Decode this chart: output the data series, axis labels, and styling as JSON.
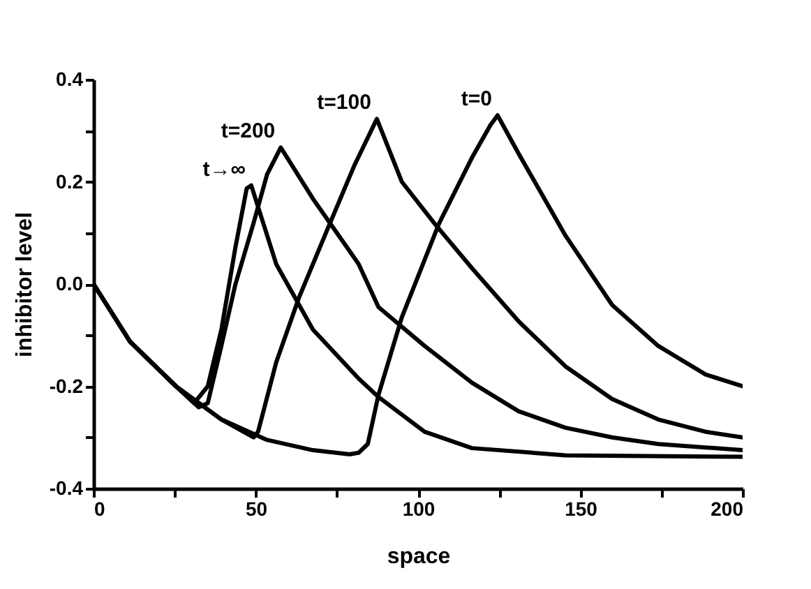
{
  "chart_data": {
    "type": "line",
    "xlabel": "space",
    "ylabel": "inhibitor level",
    "xlim": [
      0,
      200
    ],
    "ylim": [
      -0.4,
      0.4
    ],
    "xticks": [
      0,
      {
        "value": 25,
        "label": null
      },
      50,
      {
        "value": 75,
        "label": null
      },
      100,
      {
        "value": 125,
        "label": null
      },
      150,
      {
        "value": 175,
        "label": null
      },
      200
    ],
    "yticks": [
      -0.4,
      {
        "value": -0.3,
        "label": null
      },
      -0.2,
      {
        "value": -0.1,
        "label": null
      },
      {
        "value": 0,
        "label": "0.0"
      },
      {
        "value": 0.1,
        "label": null
      },
      0.2,
      {
        "value": 0.3,
        "label": null
      },
      0.4
    ],
    "grid": false,
    "legend": false,
    "line_style": "solid",
    "marker": "none",
    "series": [
      {
        "name": "t=0",
        "color": "#000000",
        "x": [
          0,
          11.3,
          25.4,
          39.4,
          53.5,
          67.6,
          78.9,
          81.7,
          84.5,
          87.8,
          95,
          106.5,
          116.6,
          122.3,
          124.5,
          131,
          145.4,
          159.8,
          174,
          188.6,
          200
        ],
        "values": [
          0,
          -0.113,
          -0.2,
          -0.265,
          -0.305,
          -0.325,
          -0.333,
          -0.33,
          -0.313,
          -0.217,
          -0.065,
          0.119,
          0.247,
          0.311,
          0.33,
          0.255,
          0.095,
          -0.041,
          -0.121,
          -0.177,
          -0.2
        ]
      },
      {
        "name": "t=100",
        "color": "#000000",
        "x": [
          0,
          11.3,
          25.4,
          39.4,
          49.3,
          50.7,
          56.3,
          63.4,
          71.8,
          80.3,
          87.3,
          95,
          105,
          116.6,
          131,
          145.4,
          159.8,
          174,
          188.6,
          200
        ],
        "values": [
          0,
          -0.113,
          -0.2,
          -0.265,
          -0.3,
          -0.289,
          -0.153,
          -0.025,
          0.103,
          0.231,
          0.323,
          0.2,
          0.119,
          0.031,
          -0.073,
          -0.161,
          -0.225,
          -0.265,
          -0.289,
          -0.3
        ]
      },
      {
        "name": "t=200",
        "color": "#000000",
        "x": [
          0,
          11.3,
          25.4,
          32.4,
          35.2,
          39.4,
          43.7,
          49.3,
          53.5,
          57.7,
          67.6,
          81.7,
          87.8,
          102,
          116.6,
          131,
          145.4,
          159.8,
          174,
          200
        ],
        "values": [
          0,
          -0.113,
          -0.2,
          -0.241,
          -0.233,
          -0.121,
          -0.001,
          0.119,
          0.215,
          0.267,
          0.167,
          0.039,
          -0.045,
          -0.121,
          -0.193,
          -0.249,
          -0.281,
          -0.3,
          -0.313,
          -0.325
        ]
      },
      {
        "name": "t→∞",
        "color": "#000000",
        "x": [
          0,
          11.3,
          25.4,
          31,
          35.2,
          39.4,
          43.7,
          47.2,
          48.6,
          56.3,
          67.6,
          81.7,
          87.8,
          102,
          116.6,
          145.4,
          200
        ],
        "values": [
          0,
          -0.113,
          -0.2,
          -0.233,
          -0.2,
          -0.089,
          0.071,
          0.187,
          0.193,
          0.039,
          -0.089,
          -0.185,
          -0.221,
          -0.289,
          -0.321,
          -0.335,
          -0.338
        ]
      }
    ]
  }
}
